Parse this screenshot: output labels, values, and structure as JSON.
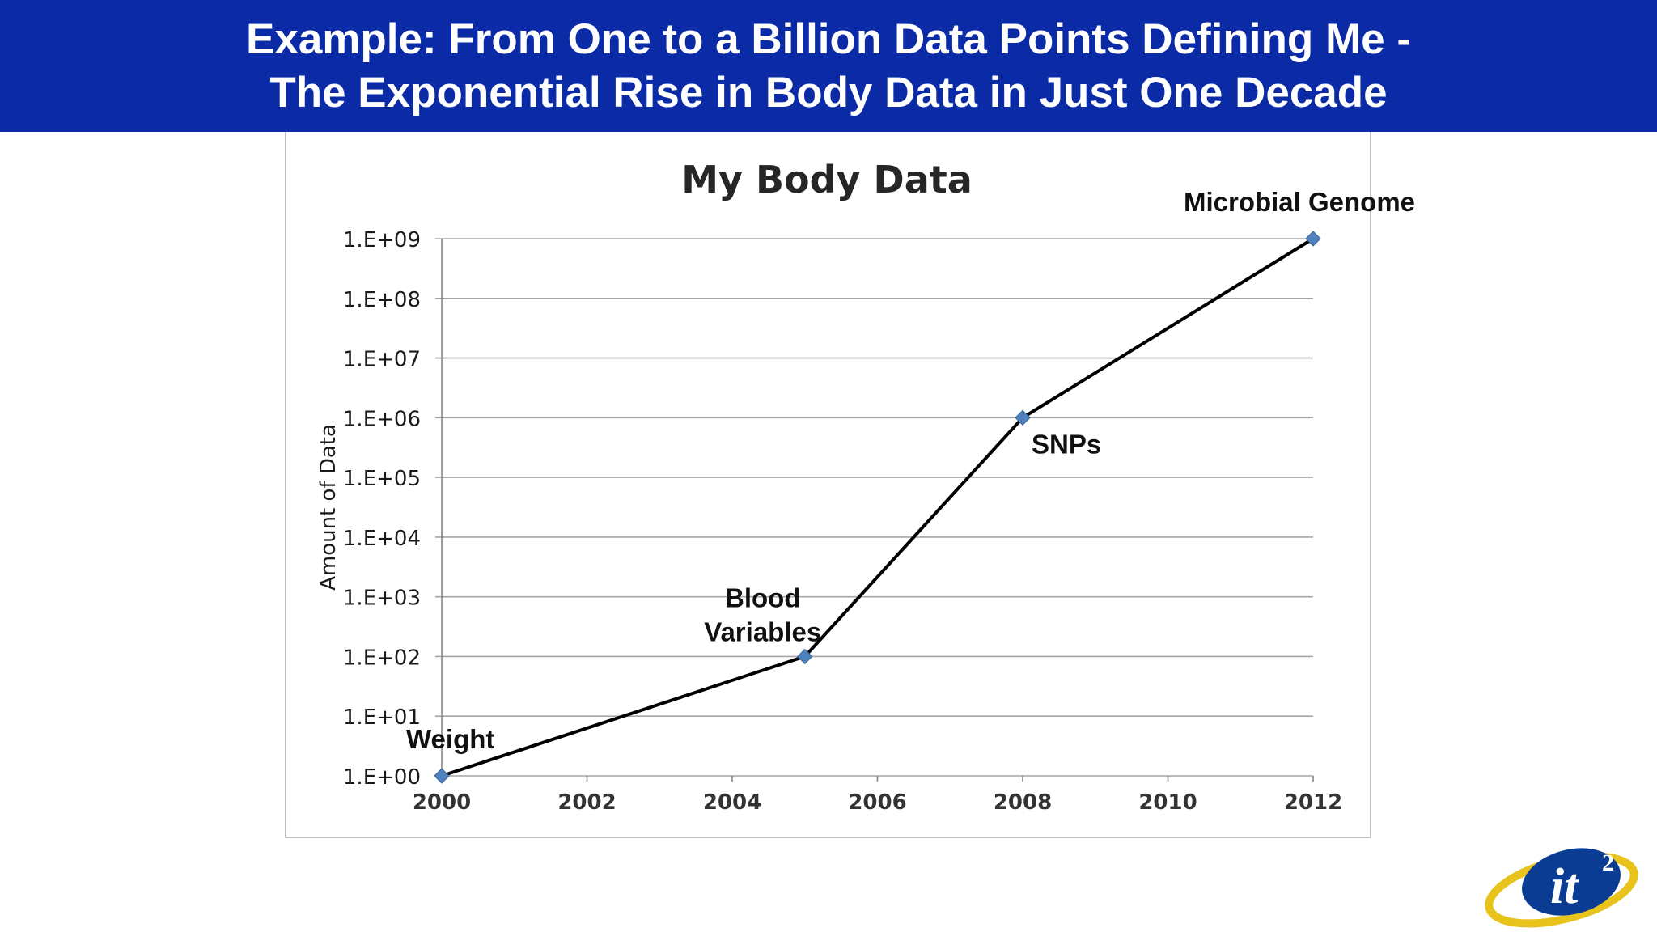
{
  "slide": {
    "title_line1": "Example: From One to a Billion Data Points Defining Me -",
    "title_line2": "The Exponential Rise in Body Data in Just One Decade",
    "banner_color": "#0a2aa6",
    "logo_text": "it",
    "logo_superscript": "2"
  },
  "chart_data": {
    "type": "line",
    "title": "My Body Data",
    "xlabel": "",
    "ylabel": "Amount of Data",
    "y_scale": "log10",
    "xlim": [
      2000,
      2012
    ],
    "ylim": [
      1,
      1000000000
    ],
    "x_ticks": [
      "2000",
      "2002",
      "2004",
      "2006",
      "2008",
      "2010",
      "2012"
    ],
    "x_tick_values": [
      2000,
      2002,
      2004,
      2006,
      2008,
      2010,
      2012
    ],
    "y_ticks": [
      "1.E+00",
      "1.E+01",
      "1.E+02",
      "1.E+03",
      "1.E+04",
      "1.E+05",
      "1.E+06",
      "1.E+07",
      "1.E+08",
      "1.E+09"
    ],
    "y_tick_values": [
      1,
      10,
      100,
      1000,
      10000,
      100000,
      1000000,
      10000000,
      100000000,
      1000000000
    ],
    "grid": true,
    "line_color": "#000000",
    "marker_color": "#4f81bd",
    "points": [
      {
        "x": 2000,
        "y": 1,
        "label": "Weight"
      },
      {
        "x": 2005,
        "y": 100,
        "label": "Blood\nVariables"
      },
      {
        "x": 2008,
        "y": 1000000,
        "label": "SNPs"
      },
      {
        "x": 2012,
        "y": 1000000000,
        "label": "Microbial Genome"
      }
    ]
  }
}
